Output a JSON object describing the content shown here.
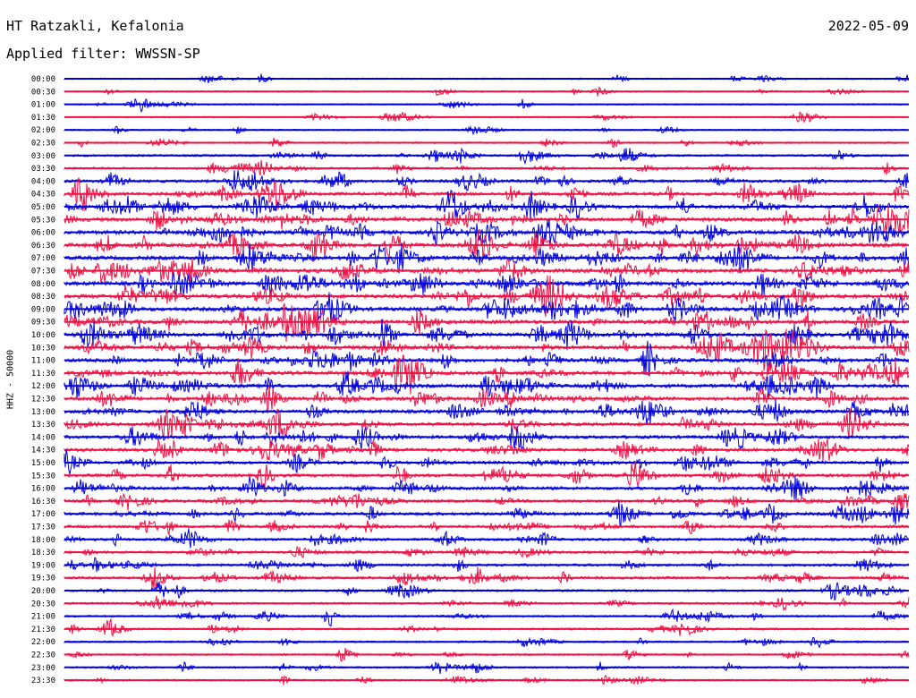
{
  "header": {
    "station": "HT Ratzakli, Kefalonia",
    "filter": "Applied filter: WWSSN-SP",
    "date": "2022-05-09"
  },
  "chart_data": {
    "type": "line",
    "title": "HT Ratzakli, Kefalonia",
    "ylabel": "HHZ - 50000",
    "colors": [
      "#0000dd",
      "#ee1144"
    ],
    "traces": [
      {
        "label": "00:00",
        "activity": 0.15
      },
      {
        "label": "00:30",
        "activity": 0.12
      },
      {
        "label": "01:00",
        "activity": 0.12
      },
      {
        "label": "01:30",
        "activity": 0.12
      },
      {
        "label": "02:00",
        "activity": 0.14
      },
      {
        "label": "02:30",
        "activity": 0.2
      },
      {
        "label": "03:00",
        "activity": 0.35
      },
      {
        "label": "03:30",
        "activity": 0.4
      },
      {
        "label": "04:00",
        "activity": 0.6
      },
      {
        "label": "04:30",
        "activity": 0.75
      },
      {
        "label": "05:00",
        "activity": 0.85
      },
      {
        "label": "05:30",
        "activity": 0.9
      },
      {
        "label": "06:00",
        "activity": 0.95
      },
      {
        "label": "06:30",
        "activity": 1.0
      },
      {
        "label": "07:00",
        "activity": 1.0
      },
      {
        "label": "07:30",
        "activity": 1.0
      },
      {
        "label": "08:00",
        "activity": 1.0
      },
      {
        "label": "08:30",
        "activity": 1.0
      },
      {
        "label": "09:00",
        "activity": 0.95
      },
      {
        "label": "09:30",
        "activity": 0.95
      },
      {
        "label": "10:00",
        "activity": 0.95
      },
      {
        "label": "10:30",
        "activity": 0.95
      },
      {
        "label": "11:00",
        "activity": 0.9
      },
      {
        "label": "11:30",
        "activity": 0.9
      },
      {
        "label": "12:00",
        "activity": 0.85
      },
      {
        "label": "12:30",
        "activity": 0.85
      },
      {
        "label": "13:00",
        "activity": 0.8
      },
      {
        "label": "13:30",
        "activity": 0.8
      },
      {
        "label": "14:00",
        "activity": 0.75
      },
      {
        "label": "14:30",
        "activity": 0.75
      },
      {
        "label": "15:00",
        "activity": 0.7
      },
      {
        "label": "15:30",
        "activity": 0.7
      },
      {
        "label": "16:00",
        "activity": 0.7
      },
      {
        "label": "16:30",
        "activity": 0.65
      },
      {
        "label": "17:00",
        "activity": 0.7
      },
      {
        "label": "17:30",
        "activity": 0.6
      },
      {
        "label": "18:00",
        "activity": 0.55
      },
      {
        "label": "18:30",
        "activity": 0.5
      },
      {
        "label": "19:00",
        "activity": 0.5
      },
      {
        "label": "19:30",
        "activity": 0.45
      },
      {
        "label": "20:00",
        "activity": 0.4
      },
      {
        "label": "20:30",
        "activity": 0.35
      },
      {
        "label": "21:00",
        "activity": 0.3
      },
      {
        "label": "21:30",
        "activity": 0.3
      },
      {
        "label": "22:00",
        "activity": 0.25
      },
      {
        "label": "22:30",
        "activity": 0.25
      },
      {
        "label": "23:00",
        "activity": 0.25
      },
      {
        "label": "23:30",
        "activity": 0.25
      }
    ]
  }
}
